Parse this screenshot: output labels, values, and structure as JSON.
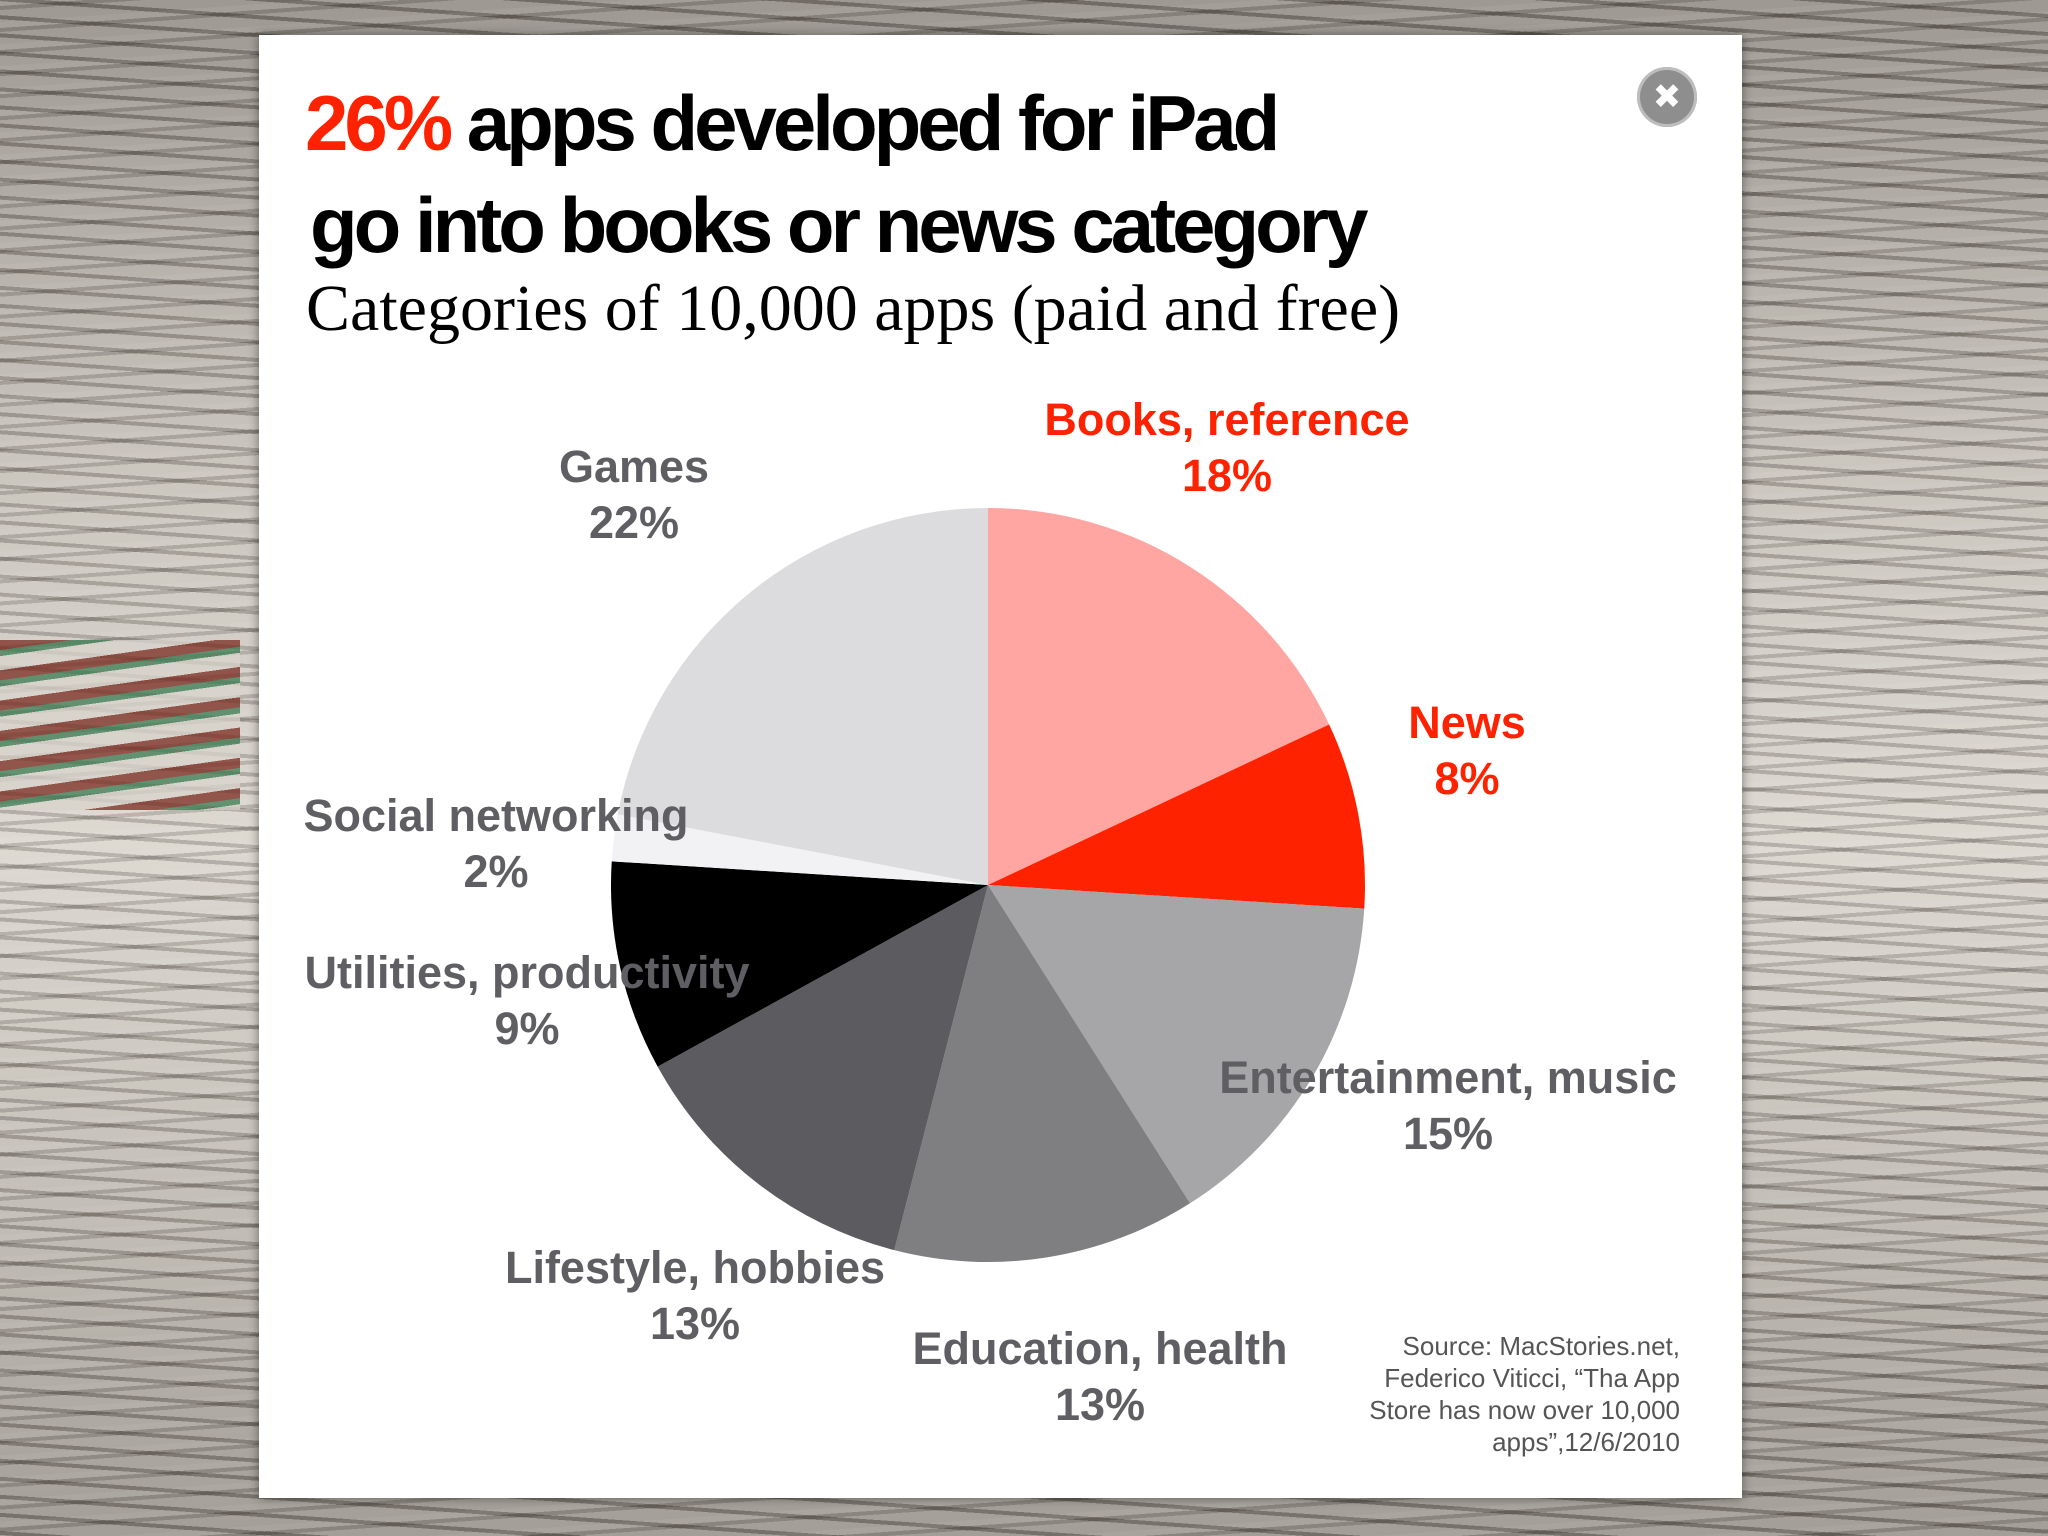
{
  "headline": {
    "accent": "26%",
    "line1_rest": " apps developed for iPad",
    "line2": "go into books or news category"
  },
  "chart_data": {
    "type": "pie",
    "title": "Categories of 10,000 apps (paid and free)",
    "slices": [
      {
        "label": "Books, reference",
        "value": 18,
        "display": "18%",
        "color": "#ffa6a3",
        "label_color": "#ff2200"
      },
      {
        "label": "News",
        "value": 8,
        "display": "8%",
        "color": "#ff2200",
        "label_color": "#ff2200"
      },
      {
        "label": "Entertainment, music",
        "value": 15,
        "display": "15%",
        "color": "#a6a6a8",
        "label_color": "#5f5f63"
      },
      {
        "label": "Education, health",
        "value": 13,
        "display": "13%",
        "color": "#7f7e81",
        "label_color": "#5f5f63"
      },
      {
        "label": "Lifestyle, hobbies",
        "value": 13,
        "display": "13%",
        "color": "#5c5b5f",
        "label_color": "#5f5f63"
      },
      {
        "label": "Utilities, productivity",
        "value": 9,
        "display": "9%",
        "color": "#000000",
        "label_color": "#5f5f63"
      },
      {
        "label": "Social networking",
        "value": 2,
        "display": "2%",
        "color": "#f2f2f4",
        "label_color": "#5f5f63"
      },
      {
        "label": "Games",
        "value": 22,
        "display": "22%",
        "color": "#dcdcde",
        "label_color": "#5f5f63"
      }
    ]
  },
  "source": {
    "lines": [
      "Source: MacStories.net,",
      "Federico Viticci, “Tha App",
      "Store has now over 10,000",
      "apps”,12/6/2010"
    ]
  }
}
